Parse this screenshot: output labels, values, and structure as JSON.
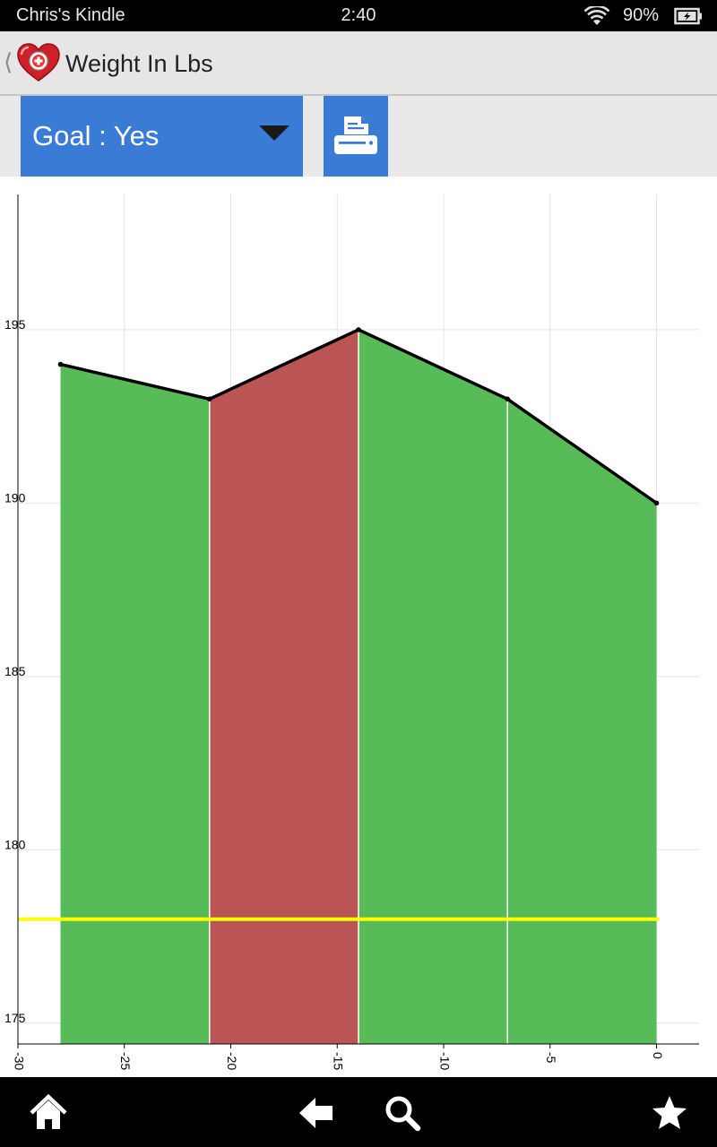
{
  "status_bar": {
    "device_name": "Chris's Kindle",
    "time": "2:40",
    "battery_percent": "90%",
    "wifi_icon": "wifi-icon",
    "battery_icon": "battery-charging-icon"
  },
  "action_bar": {
    "title": "Weight In Lbs",
    "back_icon": "chevron-left-icon",
    "app_icon": "heart-plus-icon"
  },
  "toolbar": {
    "goal_label": "Goal : Yes",
    "dropdown_icon": "caret-down-icon",
    "print_icon": "printer-icon",
    "accent_color": "#3a7bd5"
  },
  "chart_data": {
    "type": "area",
    "title": "",
    "xlabel": "",
    "ylabel": "",
    "xlim": [
      -30,
      2
    ],
    "ylim": [
      174.4,
      198.9
    ],
    "x_ticks": [
      -30,
      -25,
      -20,
      -15,
      -10,
      -5,
      0
    ],
    "x_tick_labels": [
      "-30",
      "-25",
      "-20",
      "-15",
      "-10",
      "-5",
      "0"
    ],
    "y_ticks": [
      175,
      180,
      185,
      190,
      195
    ],
    "y_tick_labels": [
      "175",
      "180",
      "185",
      "190",
      "195"
    ],
    "grid": true,
    "legend": "none",
    "series": [
      {
        "x": [
          -28,
          -21,
          -14,
          -7,
          0
        ],
        "values": [
          194,
          193,
          195,
          193,
          190
        ],
        "color": "#000000"
      }
    ],
    "segment_fills": [
      "#57bb57",
      "#bb5555",
      "#57bb57",
      "#57bb57"
    ],
    "goal_line": {
      "value": 178,
      "color": "#ffff00"
    }
  },
  "nav_bar": {
    "home_icon": "home-icon",
    "back_icon": "back-arrow-icon",
    "search_icon": "search-icon",
    "favorite_icon": "star-icon"
  }
}
